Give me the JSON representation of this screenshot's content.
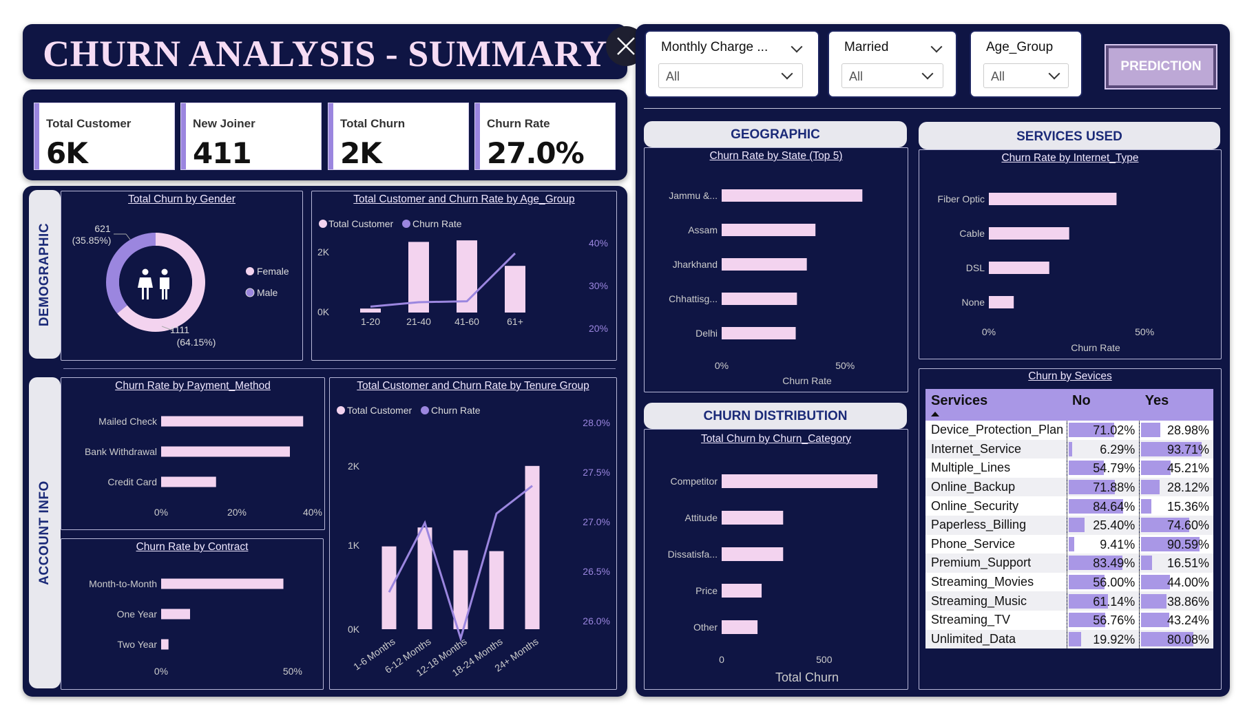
{
  "header": {
    "title": "CHURN ANALYSIS - SUMMARY"
  },
  "kpis": [
    {
      "label": "Total Customer",
      "value": "6K"
    },
    {
      "label": "New Joiner",
      "value": "411"
    },
    {
      "label": "Total Churn",
      "value": "2K"
    },
    {
      "label": "Churn Rate",
      "value": "27.0%"
    }
  ],
  "slicers": [
    {
      "title": "Monthly Charge ...",
      "value": "All"
    },
    {
      "title": "Married",
      "value": "All"
    },
    {
      "title": "Age_Group",
      "value": "All"
    }
  ],
  "prediction_button": "PREDICTION",
  "sections": {
    "demographic": "DEMOGRAPHIC",
    "account_info": "ACCOUNT INFO",
    "geographic": "GEOGRAPHIC",
    "services_used": "SERVICES USED",
    "churn_distribution": "CHURN DISTRIBUTION"
  },
  "colors": {
    "navy": "#0f1544",
    "pink": "#f3d3ef",
    "purple": "#9b86df",
    "accent": "#a997e6"
  },
  "chart_data": [
    {
      "id": "gender",
      "type": "pie",
      "title": "Total Churn by Gender",
      "labels": [
        "Female",
        "Male"
      ],
      "values": [
        1111,
        621
      ],
      "data_labels": [
        "1111",
        "(64.15%)",
        "621",
        "(35.85%)"
      ],
      "legend": [
        "Female",
        "Male"
      ],
      "colors": [
        "#f3d3ef",
        "#9b86df"
      ]
    },
    {
      "id": "age",
      "type": "bar",
      "title": "Total Customer and Churn Rate by Age_Group",
      "legend": [
        "Total Customer",
        "Churn Rate"
      ],
      "categories": [
        "1-20",
        "21-40",
        "41-60",
        "61+"
      ],
      "series": [
        {
          "name": "Total Customer",
          "values": [
            130,
            2300,
            2350,
            1520
          ]
        },
        {
          "name": "Churn Rate",
          "values": [
            22.0,
            23.5,
            23.8,
            40.0
          ]
        }
      ],
      "y_ticks": [
        "2K",
        "0K"
      ],
      "y2_ticks": [
        "40%",
        "30%",
        "20%"
      ]
    },
    {
      "id": "payment",
      "type": "bar",
      "title": "Churn Rate by Payment_Method",
      "categories": [
        "Mailed Check",
        "Bank Withdrawal",
        "Credit Card"
      ],
      "values": [
        37.5,
        34.0,
        14.5
      ],
      "x_ticks": [
        "0%",
        "20%",
        "40%"
      ],
      "xlim": [
        0,
        40
      ]
    },
    {
      "id": "contract",
      "type": "bar",
      "title": "Churn Rate by Contract",
      "categories": [
        "Month-to-Month",
        "One Year",
        "Two Year"
      ],
      "values": [
        46.5,
        11.0,
        2.8
      ],
      "x_ticks": [
        "0%",
        "50%"
      ],
      "xlim": [
        0,
        55
      ]
    },
    {
      "id": "tenure",
      "type": "bar",
      "title": "Total Customer and Churn Rate by Tenure Group",
      "legend": [
        "Total Customer",
        "Churn Rate"
      ],
      "categories": [
        "1-6 Months",
        "6-12 Months",
        "12-18 Months",
        "18-24 Months",
        "24+ Months"
      ],
      "series": [
        {
          "name": "Total Customer",
          "values": [
            1050,
            1290,
            1000,
            990,
            2070
          ]
        },
        {
          "name": "Churn Rate",
          "values": [
            26.4,
            27.15,
            25.9,
            27.25,
            27.55
          ]
        }
      ],
      "y_ticks": [
        "2K",
        "1K",
        "0K"
      ],
      "y2_ticks": [
        "28.0%",
        "27.5%",
        "27.0%",
        "26.5%",
        "26.0%"
      ]
    },
    {
      "id": "state",
      "type": "bar",
      "title": "Churn Rate by State (Top 5)",
      "categories": [
        "Jammu &...",
        "Assam",
        "Jharkhand",
        "Chhattisg...",
        "Delhi"
      ],
      "values": [
        57.0,
        38.0,
        34.5,
        30.5,
        30.0
      ],
      "x_ticks": [
        "0%",
        "50%"
      ],
      "xlabel": "Churn Rate",
      "xlim": [
        0,
        65
      ]
    },
    {
      "id": "category",
      "type": "bar",
      "title": "Total Churn by Churn_Category",
      "categories": [
        "Competitor",
        "Attitude",
        "Dissatisfa...",
        "Price",
        "Other"
      ],
      "values": [
        760,
        300,
        300,
        195,
        175
      ],
      "x_ticks": [
        "0",
        "500"
      ],
      "xlabel": "Total Churn",
      "xlim": [
        0,
        850
      ]
    },
    {
      "id": "internet",
      "type": "bar",
      "title": "Churn Rate by Internet_Type",
      "categories": [
        "Fiber Optic",
        "Cable",
        "DSL",
        "None"
      ],
      "values": [
        41.0,
        25.8,
        19.4,
        8.0
      ],
      "x_ticks": [
        "0%",
        "50%"
      ],
      "xlabel": "Churn Rate",
      "xlim": [
        0,
        65
      ]
    },
    {
      "id": "services",
      "type": "table",
      "title": "Churn by Sevices",
      "columns": [
        "Services",
        "No",
        "Yes"
      ],
      "rows": [
        [
          "Device_Protection_Plan",
          "71.02%",
          "28.98%"
        ],
        [
          "Internet_Service",
          "6.29%",
          "93.71%"
        ],
        [
          "Multiple_Lines",
          "54.79%",
          "45.21%"
        ],
        [
          "Online_Backup",
          "71.88%",
          "28.12%"
        ],
        [
          "Online_Security",
          "84.64%",
          "15.36%"
        ],
        [
          "Paperless_Billing",
          "25.40%",
          "74.60%"
        ],
        [
          "Phone_Service",
          "9.41%",
          "90.59%"
        ],
        [
          "Premium_Support",
          "83.49%",
          "16.51%"
        ],
        [
          "Streaming_Movies",
          "56.00%",
          "44.00%"
        ],
        [
          "Streaming_Music",
          "61.14%",
          "38.86%"
        ],
        [
          "Streaming_TV",
          "56.76%",
          "43.24%"
        ],
        [
          "Unlimited_Data",
          "19.92%",
          "80.08%"
        ]
      ]
    }
  ]
}
